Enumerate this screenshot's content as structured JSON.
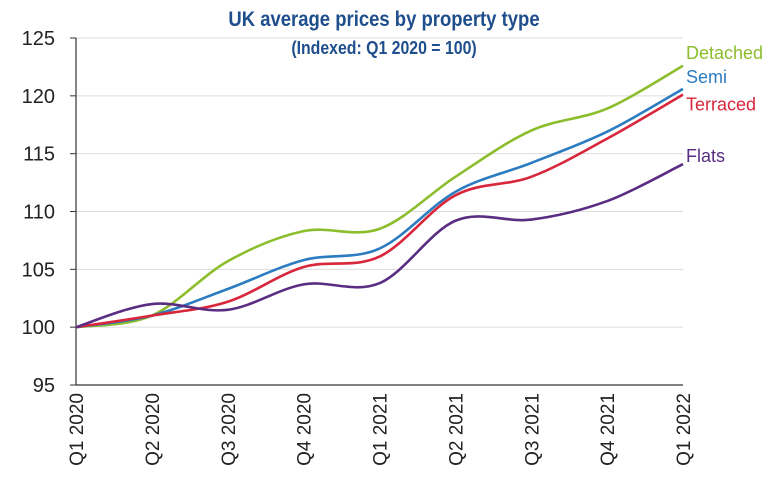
{
  "chart_data": {
    "type": "line",
    "title": "UK average prices by property type",
    "subtitle": "(Indexed: Q1 2020 = 100)",
    "xlabel": "",
    "ylabel": "",
    "categories": [
      "Q1 2020",
      "Q2 2020",
      "Q3 2020",
      "Q4 2020",
      "Q1 2021",
      "Q2 2021",
      "Q3 2021",
      "Q4 2021",
      "Q1 2022"
    ],
    "ylim": [
      95,
      125
    ],
    "yticks": [
      95,
      100,
      105,
      110,
      115,
      120,
      125
    ],
    "grid": true,
    "legend": "line-end labels on right",
    "series": [
      {
        "name": "Detached",
        "color": "#8cbd2c",
        "values": [
          100,
          101,
          105.7,
          108.3,
          108.5,
          113,
          117,
          118.9,
          122.6
        ]
      },
      {
        "name": "Semi",
        "color": "#2b7cc0",
        "values": [
          100,
          101,
          103.3,
          105.8,
          106.8,
          111.7,
          114.2,
          116.9,
          120.6
        ]
      },
      {
        "name": "Terraced",
        "color": "#d8263b",
        "values": [
          100,
          101,
          102.2,
          105.2,
          106.1,
          111.4,
          113,
          116.3,
          120.1
        ]
      },
      {
        "name": "Flats",
        "color": "#5a2d82",
        "values": [
          100,
          102,
          101.5,
          103.7,
          103.8,
          109.2,
          109.3,
          110.9,
          114.1
        ]
      }
    ]
  }
}
